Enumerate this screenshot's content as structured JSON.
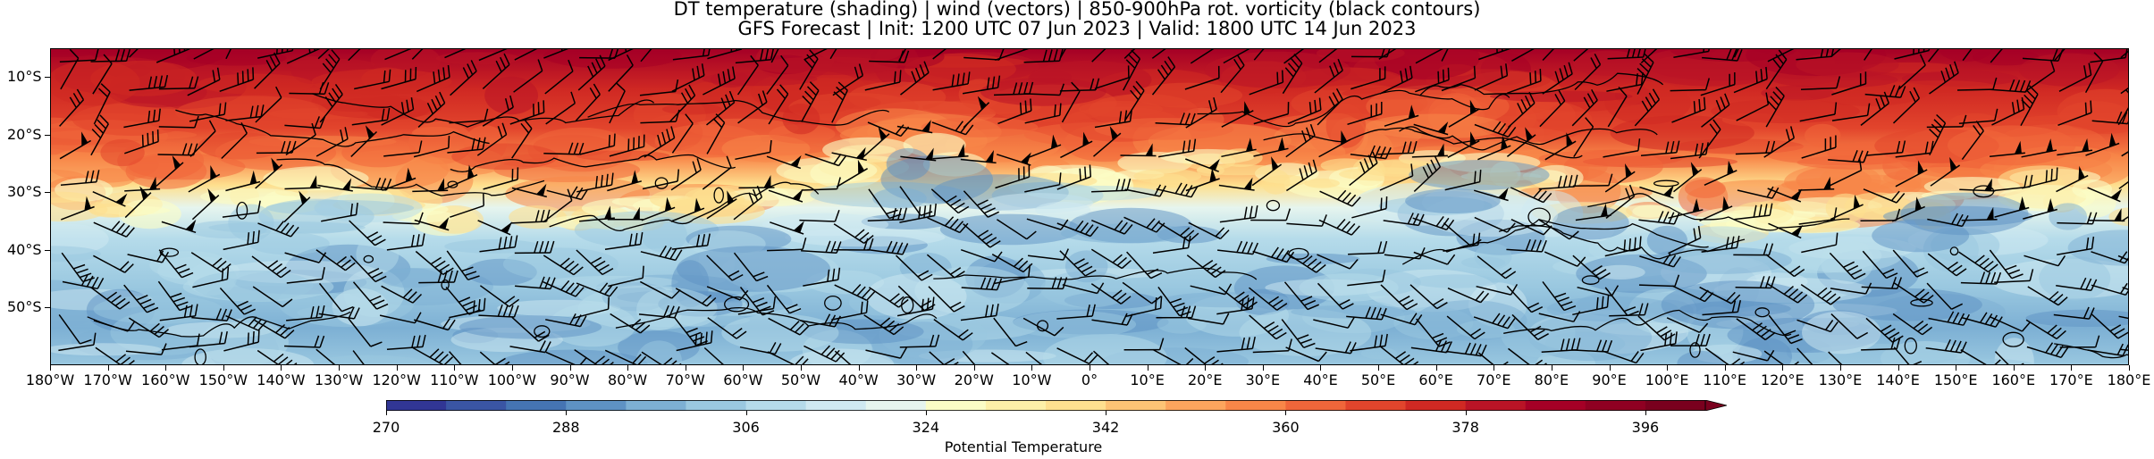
{
  "title": {
    "line1": "DT temperature (shading) | wind (vectors) | 850-900hPa rot. vorticity (black contours)",
    "line2": "GFS Forecast | Init: 1200 UTC 07 Jun 2023 | Valid: 1800 UTC 14 Jun 2023"
  },
  "lat_labels": [
    "10°S",
    "20°S",
    "30°S",
    "40°S",
    "50°S"
  ],
  "lon_labels": [
    "180°W",
    "170°W",
    "160°W",
    "150°W",
    "140°W",
    "130°W",
    "120°W",
    "110°W",
    "100°W",
    "90°W",
    "80°W",
    "70°W",
    "60°W",
    "50°W",
    "40°W",
    "30°W",
    "20°W",
    "10°W",
    "0°",
    "10°E",
    "20°E",
    "30°E",
    "40°E",
    "50°E",
    "60°E",
    "70°E",
    "80°E",
    "90°E",
    "100°E",
    "110°E",
    "120°E",
    "130°E",
    "140°E",
    "150°E",
    "160°E",
    "170°E",
    "180°E"
  ],
  "colorbar": {
    "title": "Potential Temperature",
    "tick_labels": [
      "270",
      "288",
      "306",
      "324",
      "342",
      "360",
      "378",
      "396"
    ],
    "min": 270,
    "max": 402,
    "step": 6,
    "colors": [
      "#313695",
      "#3a55a4",
      "#4574b3",
      "#5e92c4",
      "#7db0d4",
      "#9ac8e0",
      "#b5dbea",
      "#cfe9f1",
      "#e6f5ee",
      "#fbfdc6",
      "#fdf0a8",
      "#fee08f",
      "#fdc475",
      "#fca55d",
      "#f88648",
      "#f0663a",
      "#e2452c",
      "#d02923",
      "#b91426",
      "#a50026",
      "#8f0022",
      "#7a001e"
    ]
  },
  "map": {
    "lat_range": [
      -5,
      -60
    ],
    "lon_range": [
      -180,
      180
    ]
  }
}
